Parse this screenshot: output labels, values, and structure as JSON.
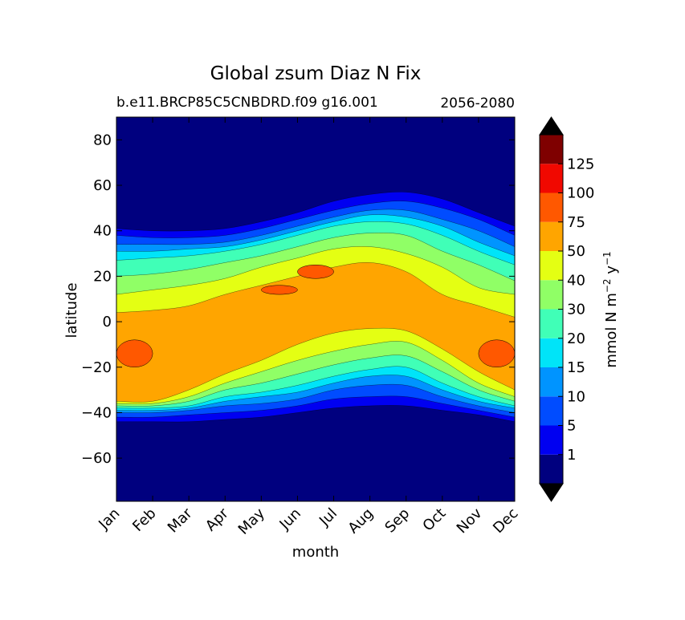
{
  "chart_data": {
    "type": "heatmap",
    "plot_kind": "filled contour",
    "title": "Global zsum Diaz N Fix",
    "subtitle_left": "b.e11.BRCP85C5CNBDRD.f09 g16.001",
    "subtitle_right": "2056-2080",
    "xlabel": "month",
    "ylabel": "latitude",
    "x_categories": [
      "Jan",
      "Feb",
      "Mar",
      "Apr",
      "May",
      "Jun",
      "Jul",
      "Aug",
      "Sep",
      "Oct",
      "Nov",
      "Dec"
    ],
    "ylim": [
      -79,
      90
    ],
    "y_ticks": [
      80,
      60,
      40,
      20,
      0,
      -20,
      -40,
      -60
    ],
    "y_tick_labels": [
      "80",
      "60",
      "40",
      "20",
      "0",
      "−20",
      "−40",
      "−60"
    ],
    "colorbar": {
      "label": "mmol N m⁻² y⁻¹",
      "label_parts": [
        "mmol N m",
        "−2",
        " y",
        "−1"
      ],
      "levels": [
        0,
        1,
        5,
        10,
        15,
        20,
        30,
        40,
        50,
        75,
        100,
        125,
        150
      ],
      "tick_labels": [
        "1",
        "5",
        "10",
        "15",
        "20",
        "30",
        "40",
        "50",
        "75",
        "100",
        "125"
      ],
      "colors": [
        "#00007f",
        "#0000f1",
        "#004cff",
        "#0094ff",
        "#00e4f8",
        "#40ffb7",
        "#90ff66",
        "#e4ff13",
        "#ffa500",
        "#ff5800",
        "#f10800",
        "#7f0000"
      ],
      "extend": "both"
    },
    "band_edges": {
      "x": [
        "Jan",
        "Feb",
        "Mar",
        "Apr",
        "May",
        "Jun",
        "Jul",
        "Aug",
        "Sep",
        "Oct",
        "Nov",
        "Dec"
      ],
      "north": {
        "1": [
          41,
          40,
          40,
          41,
          44,
          48,
          53,
          56,
          57,
          54,
          48,
          42
        ],
        "5": [
          38,
          37,
          37,
          38,
          41,
          45,
          49,
          52,
          53,
          50,
          45,
          38
        ],
        "10": [
          34,
          34,
          34,
          35,
          38,
          42,
          46,
          49,
          49,
          45,
          40,
          33
        ],
        "15": [
          31,
          31,
          32,
          33,
          36,
          40,
          44,
          47,
          46,
          42,
          35,
          29
        ],
        "20": [
          27,
          28,
          29,
          31,
          34,
          38,
          42,
          44,
          43,
          38,
          31,
          25
        ],
        "30": [
          20,
          21,
          23,
          26,
          29,
          33,
          37,
          39,
          38,
          31,
          25,
          18
        ],
        "40": [
          12,
          14,
          16,
          19,
          24,
          28,
          32,
          33,
          30,
          24,
          15,
          12
        ],
        "50": [
          4,
          5,
          7,
          12,
          16,
          20,
          24,
          26,
          22,
          12,
          7,
          2
        ]
      },
      "south": {
        "50": [
          -35,
          -35,
          -30,
          -23,
          -17,
          -10,
          -5,
          -3,
          -4,
          -12,
          -22,
          -30
        ],
        "40": [
          -36,
          -36,
          -33,
          -27,
          -22,
          -17,
          -13,
          -10,
          -9,
          -17,
          -27,
          -33
        ],
        "30": [
          -37,
          -37,
          -35,
          -30,
          -27,
          -23,
          -19,
          -16,
          -15,
          -22,
          -30,
          -35
        ],
        "20": [
          -38,
          -38,
          -37,
          -33,
          -31,
          -28,
          -24,
          -21,
          -20,
          -27,
          -33,
          -37
        ],
        "15": [
          -39,
          -39,
          -38,
          -35,
          -33,
          -31,
          -27,
          -24,
          -24,
          -30,
          -35,
          -38
        ],
        "10": [
          -40,
          -40,
          -39,
          -37,
          -36,
          -34,
          -30,
          -28,
          -28,
          -33,
          -37,
          -40
        ],
        "5": [
          -42,
          -42,
          -41,
          -40,
          -39,
          -37,
          -34,
          -33,
          -33,
          -36,
          -39,
          -42
        ],
        "1": [
          -44,
          -44,
          -44,
          -43,
          -42,
          -40,
          -38,
          -37,
          -37,
          -39,
          -41,
          -44
        ]
      },
      "patches_75_100": [
        {
          "x": [
            "Jan",
            "Feb"
          ],
          "y_center": -14,
          "y_half": 6
        },
        {
          "x": [
            "Jun",
            "Jul"
          ],
          "y_center": 22,
          "y_half": 3
        },
        {
          "x": [
            "May",
            "Jun"
          ],
          "y_center": 14,
          "y_half": 2
        },
        {
          "x": [
            "Nov",
            "Dec"
          ],
          "y_center": -14,
          "y_half": 6
        }
      ]
    }
  }
}
